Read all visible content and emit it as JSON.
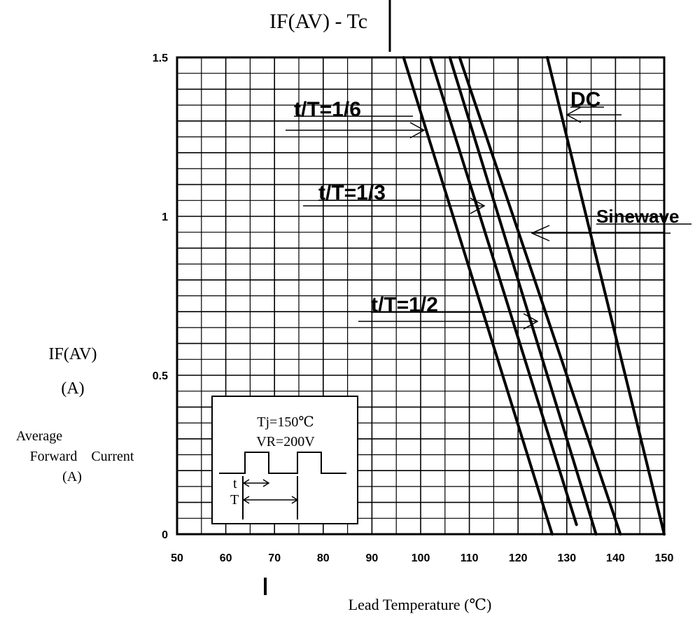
{
  "chart_data": {
    "type": "line",
    "title": "IF(AV) - Tc",
    "xlabel": "Lead Temperature (℃)",
    "ylabel": "IF(AV)",
    "ylabel_unit": "(A)",
    "ylabel_desc": [
      "Average",
      "Forward    Current",
      "(A)"
    ],
    "xlim": [
      50,
      150
    ],
    "ylim": [
      0,
      1.5
    ],
    "x_ticks": [
      "50",
      "60",
      "70",
      "80",
      "90",
      "100",
      "110",
      "120",
      "130",
      "140",
      "150"
    ],
    "y_ticks": [
      "0",
      "0.5",
      "1",
      "1.5"
    ],
    "grid": true,
    "series": [
      {
        "name": "t/T=1/6",
        "x": [
          96.5,
          127
        ],
        "y": [
          1.5,
          0
        ]
      },
      {
        "name": "t/T=1/3",
        "x": [
          102,
          132
        ],
        "y": [
          1.5,
          0.03
        ]
      },
      {
        "name": "t/T=1/2",
        "x": [
          106,
          136
        ],
        "y": [
          1.5,
          0
        ]
      },
      {
        "name": "Sinewave",
        "x": [
          108,
          141
        ],
        "y": [
          1.5,
          0
        ]
      },
      {
        "name": "DC",
        "x": [
          126,
          150
        ],
        "y": [
          1.5,
          0
        ]
      }
    ],
    "annotations": [
      {
        "text": "t/T=1/6"
      },
      {
        "text": "t/T=1/3"
      },
      {
        "text": "t/T=1/2"
      },
      {
        "text": "Sinewave"
      },
      {
        "text": "DC"
      }
    ],
    "inset": {
      "lines": [
        "Tj=150℃",
        "VR=200V"
      ],
      "t_label": "t",
      "T_label": "T"
    }
  }
}
